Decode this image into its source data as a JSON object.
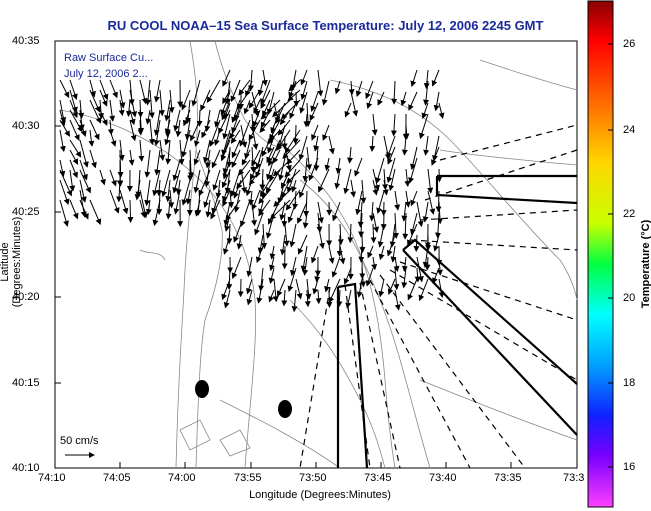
{
  "title": "RU COOL  NOAA–15  Sea Surface Temperature:  July 12, 2006 2245 GMT",
  "legend": {
    "line1": "Raw Surface Cu...",
    "line2": "July 12, 2006 2..."
  },
  "axes": {
    "xlabel": "Longitude (Degrees:Minutes)",
    "ylabel": "Latitude (Degrees:Minutes)",
    "xticks": [
      "74:10",
      "74:05",
      "74:00",
      "73:55",
      "73:50",
      "73:45",
      "73:40",
      "73:35",
      "73:3"
    ],
    "yticks": [
      "40:35",
      "40:30",
      "40:25",
      "40:20",
      "40:15",
      "40:10"
    ]
  },
  "colorbar": {
    "label": "Temperature (°C)",
    "ticks": [
      "26",
      "24",
      "22",
      "20",
      "18",
      "16"
    ]
  },
  "scale_label": "50 cm/s",
  "colors": {
    "title": "#1a2a9a",
    "vector": "#000000",
    "coast": "#888888"
  }
}
